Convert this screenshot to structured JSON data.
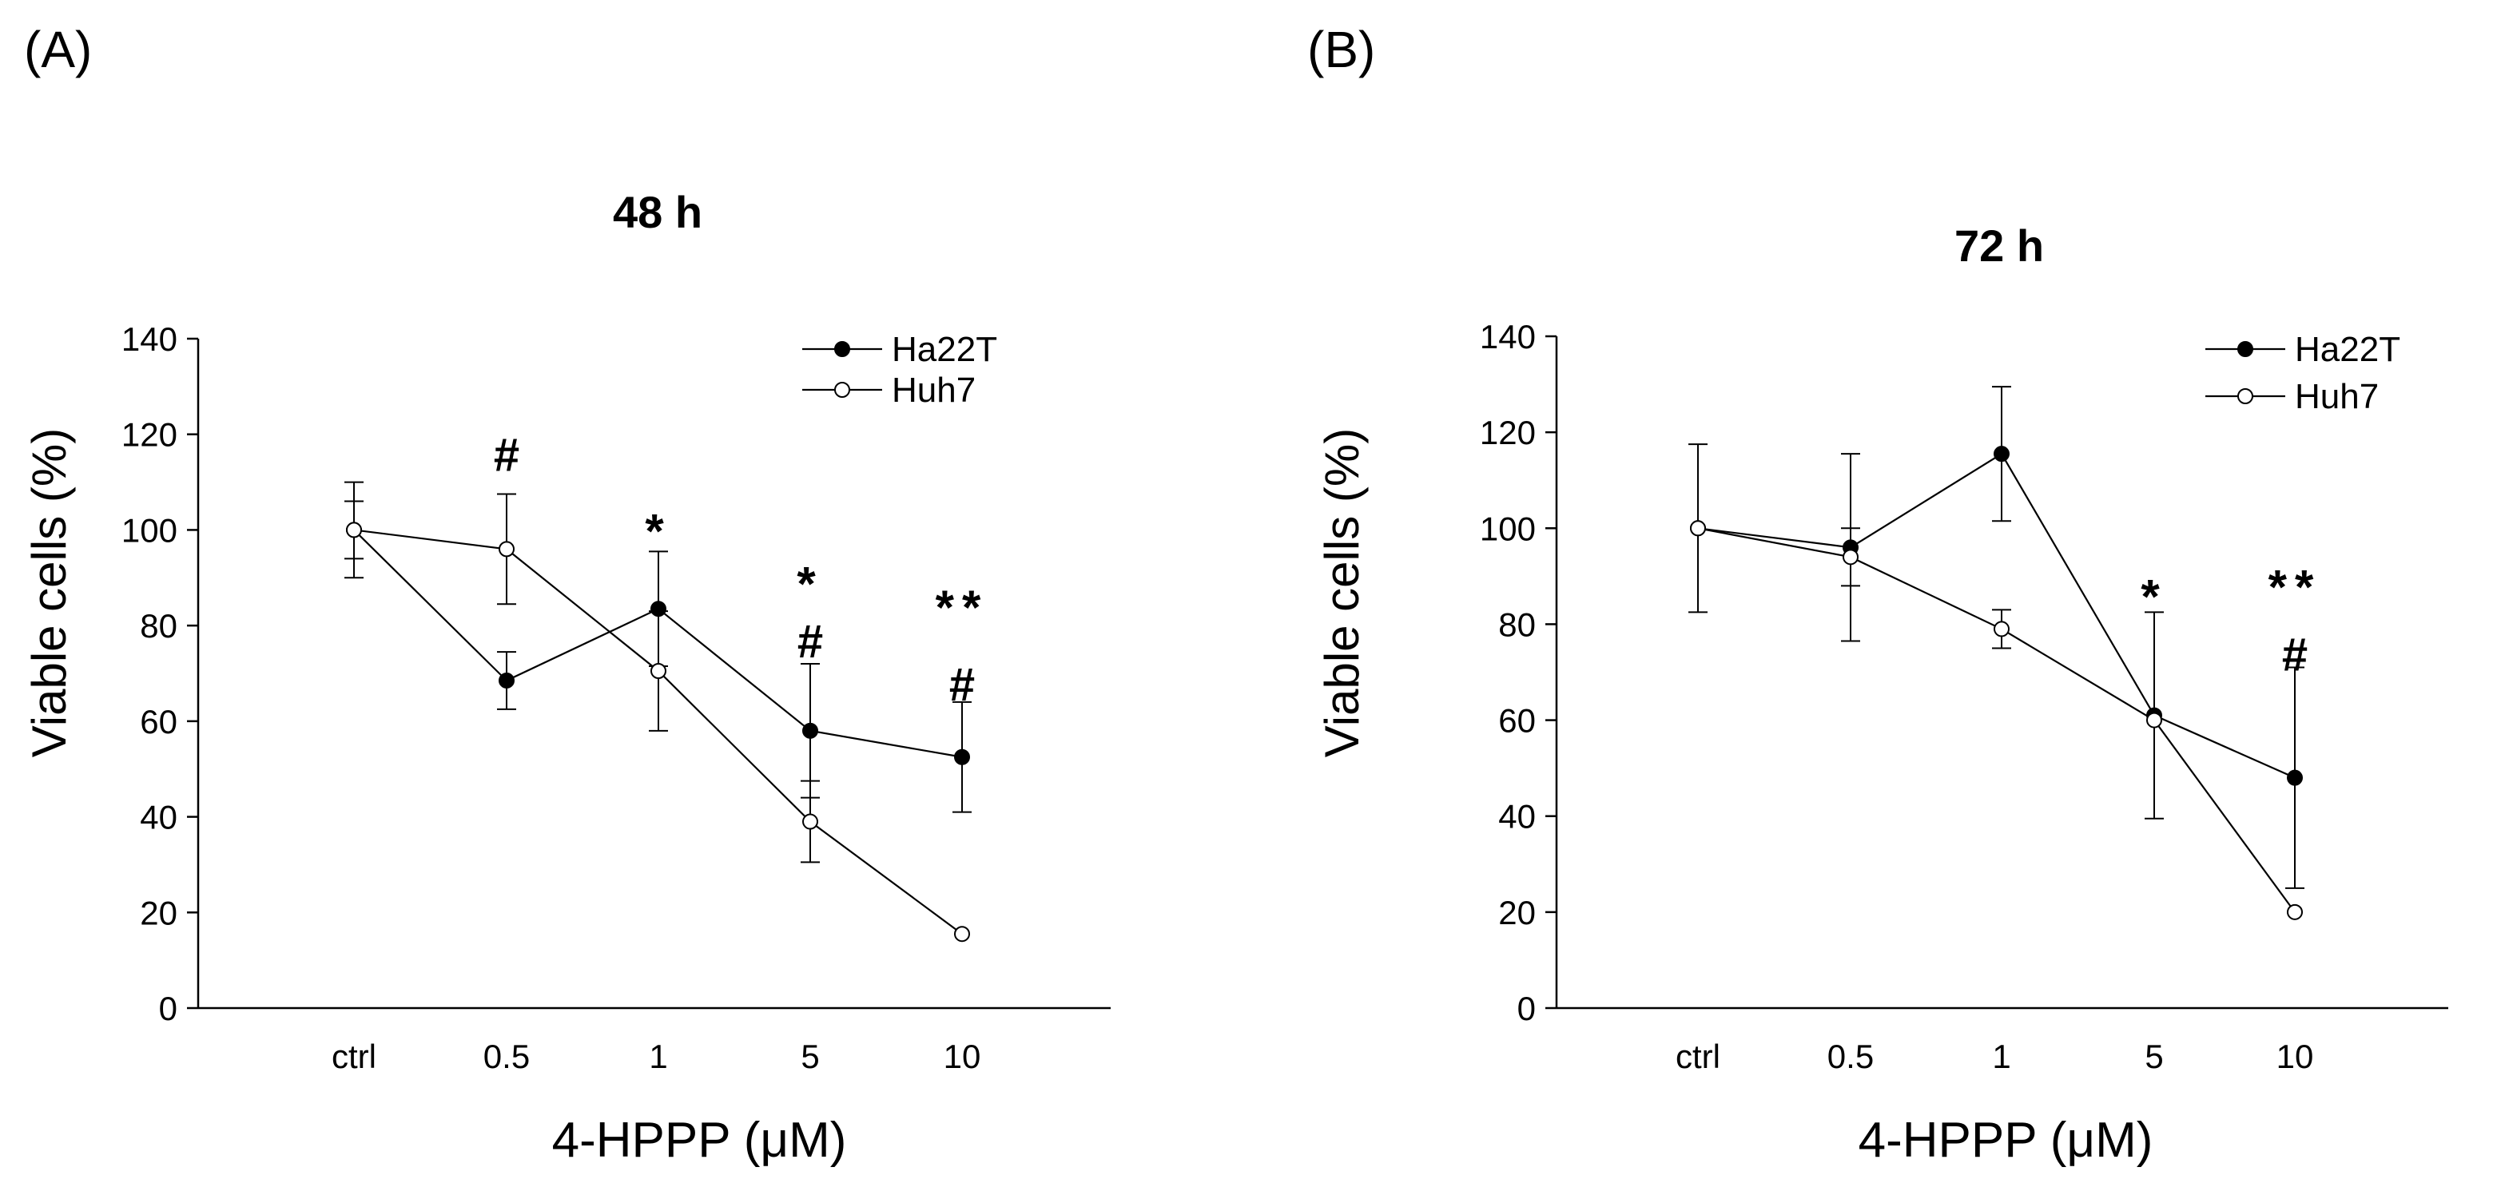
{
  "chart_data": [
    {
      "panel_label": "(A)",
      "type": "line",
      "title": "48 h",
      "xlabel": "4-HPPP (μM)",
      "ylabel": "Viable cells (%)",
      "categories": [
        "ctrl",
        "0.5",
        "1",
        "5",
        "10"
      ],
      "ylim": [
        0,
        140
      ],
      "yticks": [
        0,
        20,
        40,
        60,
        80,
        100,
        120,
        140
      ],
      "grid": false,
      "legend_position": "top-right",
      "series": [
        {
          "name": "Ha22T",
          "marker": "filled-circle",
          "values": [
            100,
            68.5,
            83.5,
            58,
            52.5
          ],
          "errors": [
            6,
            6,
            12,
            14,
            11.5
          ]
        },
        {
          "name": "Huh7",
          "marker": "open-circle",
          "values": [
            100,
            96,
            70.5,
            39,
            15.5
          ],
          "errors": [
            10,
            11.5,
            12.5,
            8.5,
            0.5
          ]
        }
      ],
      "annotations": [
        {
          "category": "0.5",
          "y": 116,
          "text": "#"
        },
        {
          "category": "1",
          "y": 102,
          "text": "*"
        },
        {
          "category": "5",
          "y": 91,
          "text": "*"
        },
        {
          "category": "5",
          "y": 77,
          "text": "#"
        },
        {
          "category": "10",
          "y": 86,
          "text": "**"
        },
        {
          "category": "10",
          "y": 68,
          "text": "#"
        }
      ]
    },
    {
      "panel_label": "(B)",
      "type": "line",
      "title": "72 h",
      "xlabel": "4-HPPP (μM)",
      "ylabel": "Viable cells (%)",
      "categories": [
        "ctrl",
        "0.5",
        "1",
        "5",
        "10"
      ],
      "ylim": [
        0,
        140
      ],
      "yticks": [
        0,
        20,
        40,
        60,
        80,
        100,
        120,
        140
      ],
      "grid": false,
      "legend_position": "top-right",
      "series": [
        {
          "name": "Ha22T",
          "marker": "filled-circle",
          "values": [
            100,
            96,
            115.5,
            61,
            48
          ],
          "errors": [
            17.5,
            19.5,
            14,
            21.5,
            23
          ]
        },
        {
          "name": "Huh7",
          "marker": "open-circle",
          "values": [
            100,
            94,
            79,
            60,
            20
          ],
          "errors": [
            0.5,
            6,
            4,
            0.5,
            0.5
          ]
        }
      ],
      "annotations": [
        {
          "category": "5",
          "y": 88,
          "text": "*"
        },
        {
          "category": "10",
          "y": 90,
          "text": "**"
        },
        {
          "category": "10",
          "y": 74,
          "text": "#"
        }
      ]
    }
  ]
}
